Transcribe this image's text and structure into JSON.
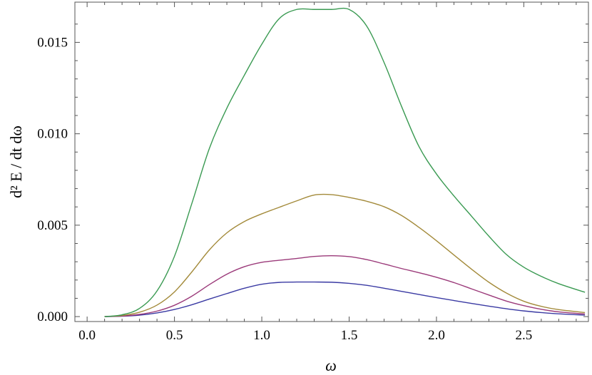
{
  "chart_data": {
    "type": "line",
    "xlabel": "ω",
    "ylabel": "d² E / dt dω",
    "xlim": [
      -0.07,
      2.87
    ],
    "ylim": [
      -0.00027,
      0.0172
    ],
    "xticks": [
      "0.0",
      "0.5",
      "1.0",
      "1.5",
      "2.0",
      "2.5"
    ],
    "yticks": [
      "0.000",
      "0.005",
      "0.010",
      "0.015"
    ],
    "grid": false,
    "series": [
      {
        "color": "#3a3aa3",
        "x": [
          0.1,
          0.2,
          0.3,
          0.4,
          0.5,
          0.6,
          0.7,
          0.8,
          0.9,
          1.0,
          1.1,
          1.2,
          1.3,
          1.4,
          1.5,
          1.6,
          1.7,
          1.8,
          1.9,
          2.0,
          2.1,
          2.2,
          2.3,
          2.4,
          2.5,
          2.6,
          2.7,
          2.85
        ],
        "y": [
          0.0,
          2e-05,
          8e-05,
          0.0002,
          0.00039,
          0.00065,
          0.00096,
          0.00126,
          0.00155,
          0.00177,
          0.00187,
          0.00189,
          0.00189,
          0.00188,
          0.00182,
          0.00171,
          0.00155,
          0.00138,
          0.00121,
          0.00104,
          0.00088,
          0.00072,
          0.00057,
          0.00043,
          0.00031,
          0.00022,
          0.00015,
          8e-05
        ]
      },
      {
        "color": "#9b3a7a",
        "x": [
          0.1,
          0.2,
          0.3,
          0.4,
          0.5,
          0.6,
          0.7,
          0.8,
          0.9,
          1.0,
          1.1,
          1.2,
          1.3,
          1.4,
          1.5,
          1.6,
          1.7,
          1.8,
          1.9,
          2.0,
          2.1,
          2.2,
          2.3,
          2.4,
          2.5,
          2.6,
          2.7,
          2.85
        ],
        "y": [
          0.0,
          3e-05,
          0.00012,
          0.0003,
          0.00062,
          0.00112,
          0.00175,
          0.00232,
          0.00273,
          0.00297,
          0.00308,
          0.00318,
          0.00329,
          0.00333,
          0.00328,
          0.00312,
          0.00288,
          0.00263,
          0.0024,
          0.00215,
          0.00186,
          0.00152,
          0.00118,
          0.00085,
          0.0006,
          0.0004,
          0.00026,
          0.00014
        ]
      },
      {
        "color": "#a38a3a",
        "x": [
          0.1,
          0.2,
          0.3,
          0.4,
          0.5,
          0.6,
          0.7,
          0.8,
          0.9,
          1.0,
          1.1,
          1.2,
          1.3,
          1.4,
          1.5,
          1.6,
          1.7,
          1.8,
          1.9,
          2.0,
          2.1,
          2.2,
          2.3,
          2.4,
          2.5,
          2.6,
          2.7,
          2.85
        ],
        "y": [
          0.0,
          6e-05,
          0.00024,
          0.00063,
          0.00135,
          0.00245,
          0.00365,
          0.00458,
          0.0052,
          0.00562,
          0.00598,
          0.00633,
          0.00665,
          0.00667,
          0.00652,
          0.00631,
          0.00601,
          0.00553,
          0.00488,
          0.00415,
          0.00337,
          0.0026,
          0.00188,
          0.00129,
          0.00084,
          0.00056,
          0.00038,
          0.00022
        ]
      },
      {
        "color": "#3a9a52",
        "x": [
          0.1,
          0.2,
          0.3,
          0.4,
          0.5,
          0.6,
          0.7,
          0.8,
          0.9,
          1.0,
          1.1,
          1.2,
          1.3,
          1.4,
          1.5,
          1.6,
          1.7,
          1.8,
          1.9,
          2.0,
          2.1,
          2.2,
          2.3,
          2.4,
          2.5,
          2.6,
          2.7,
          2.85
        ],
        "y": [
          0.0,
          0.0001,
          0.00045,
          0.0014,
          0.0033,
          0.0062,
          0.0092,
          0.0114,
          0.0132,
          0.0149,
          0.0163,
          0.0168,
          0.0168,
          0.0168,
          0.0168,
          0.0159,
          0.0139,
          0.0115,
          0.0093,
          0.0078,
          0.0066,
          0.0055,
          0.0044,
          0.0034,
          0.0027,
          0.0022,
          0.0018,
          0.00133
        ]
      }
    ]
  }
}
